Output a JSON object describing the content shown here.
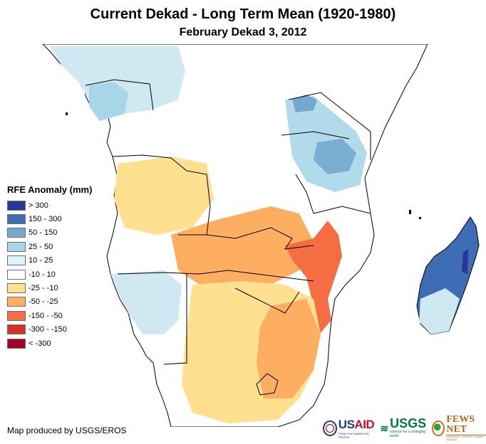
{
  "title": "Current Dekad - Long Term Mean (1920-1980)",
  "subtitle": "February Dekad 3, 2012",
  "legend": {
    "title": "RFE Anomaly (mm)",
    "items": [
      {
        "label": "> 300",
        "color": "#2b3598"
      },
      {
        "label": "150 - 300",
        "color": "#3f6db5"
      },
      {
        "label": "50 - 150",
        "color": "#74a9cf"
      },
      {
        "label": "25 - 50",
        "color": "#a8d6e8"
      },
      {
        "label": "10 - 25",
        "color": "#e0f3f8"
      },
      {
        "label": "-10 - 10",
        "color": "#ffffff"
      },
      {
        "label": "-25 - -10",
        "color": "#fee090"
      },
      {
        "label": "-50 - -25",
        "color": "#fdae61"
      },
      {
        "label": "-150 - -50",
        "color": "#f46d43"
      },
      {
        "label": "-300 - -150",
        "color": "#d73027"
      },
      {
        "label": "< -300",
        "color": "#a50026"
      }
    ]
  },
  "credit": "Map produced by USGS/EROS",
  "logos": {
    "usaid": {
      "us": "US",
      "aid": "AID",
      "tagline": "FROM THE AMERICAN PEOPLE"
    },
    "usgs": {
      "name": "USGS",
      "tagline": "science for a changing world"
    },
    "fews": {
      "name": "FEWS NET",
      "tagline": "FAMINE EARLY WARNING SYSTEMS NETWORK"
    }
  },
  "map": {
    "region": "Southern and Central Africa",
    "highlights": [
      {
        "area": "Madagascar",
        "category": "150 - 300"
      },
      {
        "area": "Mozambique / Malawi",
        "category": "-150 - -50"
      },
      {
        "area": "Tanzania",
        "category": "50 - 150"
      },
      {
        "area": "Zambia / Zimbabwe",
        "category": "-50 - -25"
      },
      {
        "area": "South Africa",
        "category": "-25 - -10"
      },
      {
        "area": "Namibia",
        "category": "25 - 50"
      }
    ]
  }
}
